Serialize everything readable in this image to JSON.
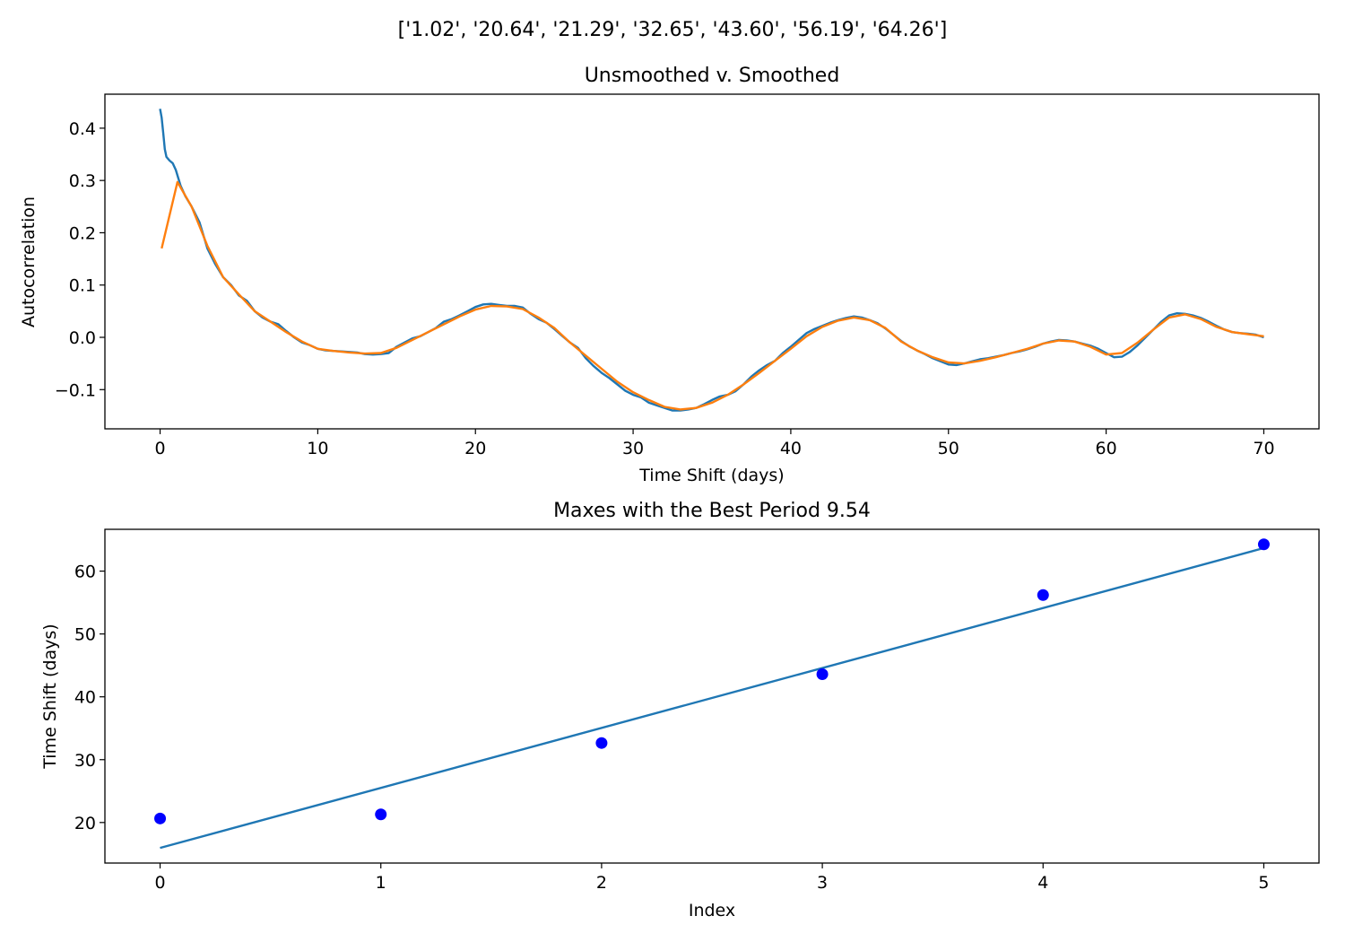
{
  "figure": {
    "suptitle": "['1.02', '20.64', '21.29', '32.65', '43.60', '56.19', '64.26']"
  },
  "chart_data": [
    {
      "type": "line",
      "title": "Unsmoothed v. Smoothed",
      "xlabel": "Time Shift (days)",
      "ylabel": "Autocorrelation",
      "xlim": [
        -3.5,
        73.5
      ],
      "ylim": [
        -0.175,
        0.465
      ],
      "xticks": [
        0,
        10,
        20,
        30,
        40,
        50,
        60,
        70
      ],
      "xtick_labels": [
        "0",
        "10",
        "20",
        "30",
        "40",
        "50",
        "60",
        "70"
      ],
      "yticks": [
        0.4,
        0.3,
        0.2,
        0.1,
        0.0,
        -0.1
      ],
      "ytick_labels": [
        "0.4",
        "0.3",
        "0.2",
        "0.1",
        "0.0",
        "−0.1"
      ],
      "grid": false,
      "series": [
        {
          "color": "#1f77b4",
          "x": [
            0,
            0.1,
            0.2,
            0.3,
            0.4,
            0.6,
            0.8,
            1.0,
            1.3,
            1.6,
            2.0,
            2.5,
            3.0,
            3.5,
            4.0,
            4.5,
            5.0,
            5.5,
            6.0,
            6.5,
            7.0,
            7.5,
            8.0,
            8.5,
            9.0,
            9.5,
            10.0,
            10.5,
            11.0,
            11.5,
            12.0,
            12.5,
            13.0,
            13.5,
            14.0,
            14.5,
            15.0,
            15.5,
            16.0,
            16.5,
            17.0,
            17.5,
            18.0,
            18.5,
            19.0,
            19.5,
            20.0,
            20.5,
            21.0,
            21.5,
            22.0,
            22.5,
            23.0,
            23.5,
            24.0,
            24.5,
            25.0,
            25.5,
            26.0,
            26.5,
            27.0,
            27.5,
            28.0,
            28.5,
            29.0,
            29.5,
            30.0,
            30.5,
            31.0,
            31.5,
            32.0,
            32.5,
            33.0,
            33.5,
            34.0,
            34.5,
            35.0,
            35.5,
            36.0,
            36.5,
            37.0,
            37.5,
            38.0,
            38.5,
            39.0,
            39.5,
            40.0,
            40.5,
            41.0,
            41.5,
            42.0,
            42.5,
            43.0,
            43.5,
            44.0,
            44.5,
            45.0,
            45.5,
            46.0,
            46.5,
            47.0,
            47.5,
            48.0,
            48.5,
            49.0,
            49.5,
            50.0,
            50.5,
            51.0,
            51.5,
            52.0,
            52.5,
            53.0,
            53.5,
            54.0,
            54.5,
            55.0,
            55.5,
            56.0,
            56.5,
            57.0,
            57.5,
            58.0,
            58.5,
            59.0,
            59.5,
            60.0,
            60.5,
            61.0,
            61.5,
            62.0,
            62.5,
            63.0,
            63.5,
            64.0,
            64.5,
            65.0,
            65.5,
            66.0,
            66.5,
            67.0,
            67.5,
            68.0,
            68.5,
            69.0,
            69.5,
            70.0
          ],
          "y": [
            0.437,
            0.42,
            0.39,
            0.36,
            0.345,
            0.338,
            0.333,
            0.32,
            0.29,
            0.27,
            0.25,
            0.22,
            0.17,
            0.14,
            0.115,
            0.1,
            0.08,
            0.07,
            0.05,
            0.038,
            0.03,
            0.025,
            0.012,
            0.0,
            -0.01,
            -0.015,
            -0.022,
            -0.025,
            -0.026,
            -0.027,
            -0.028,
            -0.029,
            -0.032,
            -0.033,
            -0.032,
            -0.03,
            -0.018,
            -0.01,
            -0.002,
            0.002,
            0.01,
            0.018,
            0.03,
            0.035,
            0.042,
            0.05,
            0.058,
            0.063,
            0.064,
            0.062,
            0.06,
            0.06,
            0.057,
            0.045,
            0.035,
            0.028,
            0.016,
            0.003,
            -0.01,
            -0.02,
            -0.04,
            -0.055,
            -0.068,
            -0.078,
            -0.09,
            -0.102,
            -0.11,
            -0.115,
            -0.125,
            -0.13,
            -0.135,
            -0.14,
            -0.14,
            -0.138,
            -0.135,
            -0.128,
            -0.12,
            -0.113,
            -0.11,
            -0.103,
            -0.09,
            -0.075,
            -0.063,
            -0.053,
            -0.045,
            -0.03,
            -0.018,
            -0.005,
            0.008,
            0.016,
            0.022,
            0.028,
            0.033,
            0.037,
            0.04,
            0.038,
            0.033,
            0.027,
            0.017,
            0.005,
            -0.007,
            -0.017,
            -0.025,
            -0.032,
            -0.04,
            -0.046,
            -0.052,
            -0.053,
            -0.05,
            -0.046,
            -0.042,
            -0.04,
            -0.037,
            -0.034,
            -0.03,
            -0.027,
            -0.023,
            -0.018,
            -0.012,
            -0.008,
            -0.005,
            -0.006,
            -0.008,
            -0.012,
            -0.016,
            -0.022,
            -0.03,
            -0.038,
            -0.037,
            -0.028,
            -0.015,
            0.0,
            0.015,
            0.03,
            0.042,
            0.046,
            0.045,
            0.042,
            0.037,
            0.03,
            0.022,
            0.015,
            0.01,
            0.008,
            0.007,
            0.005,
            0.0
          ]
        },
        {
          "color": "#ff7f0e",
          "x": [
            0.1,
            1.1,
            2.0,
            3.0,
            4.0,
            5.0,
            6.0,
            7.0,
            8.0,
            9.0,
            10.0,
            11.0,
            12.0,
            13.0,
            14.0,
            15.0,
            16.0,
            17.0,
            18.0,
            19.0,
            20.0,
            21.0,
            22.0,
            23.0,
            24.0,
            25.0,
            26.0,
            27.0,
            28.0,
            29.0,
            30.0,
            31.0,
            32.0,
            33.0,
            34.0,
            35.0,
            36.0,
            37.0,
            38.0,
            39.0,
            40.0,
            41.0,
            42.0,
            43.0,
            44.0,
            45.0,
            46.0,
            47.0,
            48.0,
            49.0,
            50.0,
            51.0,
            52.0,
            53.0,
            54.0,
            55.0,
            56.0,
            57.0,
            58.0,
            59.0,
            60.0,
            61.0,
            62.0,
            63.0,
            64.0,
            65.0,
            66.0,
            67.0,
            68.0,
            69.0,
            70.0
          ],
          "y": [
            0.17,
            0.297,
            0.25,
            0.175,
            0.115,
            0.082,
            0.05,
            0.03,
            0.01,
            -0.008,
            -0.022,
            -0.026,
            -0.029,
            -0.031,
            -0.03,
            -0.02,
            -0.005,
            0.01,
            0.025,
            0.04,
            0.053,
            0.06,
            0.059,
            0.054,
            0.038,
            0.018,
            -0.01,
            -0.035,
            -0.06,
            -0.085,
            -0.105,
            -0.12,
            -0.133,
            -0.138,
            -0.135,
            -0.125,
            -0.11,
            -0.09,
            -0.068,
            -0.045,
            -0.022,
            0.002,
            0.02,
            0.032,
            0.038,
            0.033,
            0.018,
            -0.008,
            -0.025,
            -0.038,
            -0.048,
            -0.05,
            -0.045,
            -0.038,
            -0.03,
            -0.022,
            -0.012,
            -0.006,
            -0.008,
            -0.018,
            -0.033,
            -0.03,
            -0.01,
            0.015,
            0.038,
            0.044,
            0.035,
            0.02,
            0.01,
            0.006,
            0.002
          ]
        }
      ]
    },
    {
      "type": "scatter",
      "title": "Maxes with the Best Period 9.54",
      "xlabel": "Index",
      "ylabel": "Time Shift (days)",
      "xlim": [
        -0.25,
        5.25
      ],
      "ylim": [
        13.55,
        66.65
      ],
      "xticks": [
        0,
        1,
        2,
        3,
        4,
        5
      ],
      "xtick_labels": [
        "0",
        "1",
        "2",
        "3",
        "4",
        "5"
      ],
      "yticks": [
        60,
        50,
        40,
        30,
        20
      ],
      "ytick_labels": [
        "60",
        "50",
        "40",
        "30",
        "20"
      ],
      "grid": false,
      "points": {
        "color": "#0000ff",
        "x": [
          0,
          1,
          2,
          3,
          4,
          5
        ],
        "y": [
          20.64,
          21.29,
          32.65,
          43.6,
          56.19,
          64.26
        ]
      },
      "fit_line": {
        "color": "#1f77b4",
        "x": [
          0,
          5
        ],
        "y": [
          15.96,
          63.66
        ]
      }
    }
  ]
}
